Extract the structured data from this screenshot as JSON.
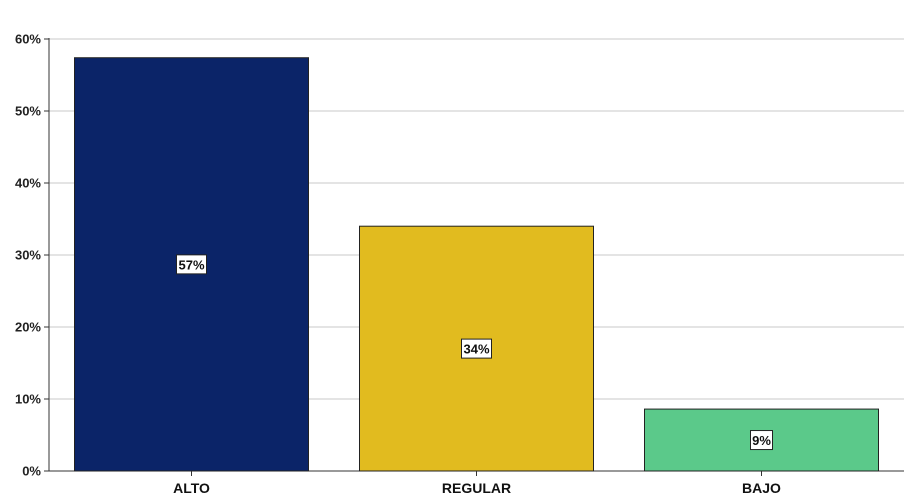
{
  "chart_data": {
    "type": "bar",
    "categories": [
      "ALTO",
      "REGULAR",
      "BAJO"
    ],
    "values": [
      57.4,
      34.0,
      8.6
    ],
    "data_labels": [
      "57%",
      "34%",
      "9%"
    ],
    "colors": [
      "#0b2468",
      "#e1bb1f",
      "#5bc98a"
    ],
    "ylim": [
      0,
      60
    ],
    "yticks": [
      0,
      10,
      20,
      30,
      40,
      50,
      60
    ],
    "ytick_labels": [
      "0%",
      "10%",
      "20%",
      "30%",
      "40%",
      "50%",
      "60%"
    ],
    "grid": true,
    "title": "",
    "xlabel": "",
    "ylabel": ""
  }
}
